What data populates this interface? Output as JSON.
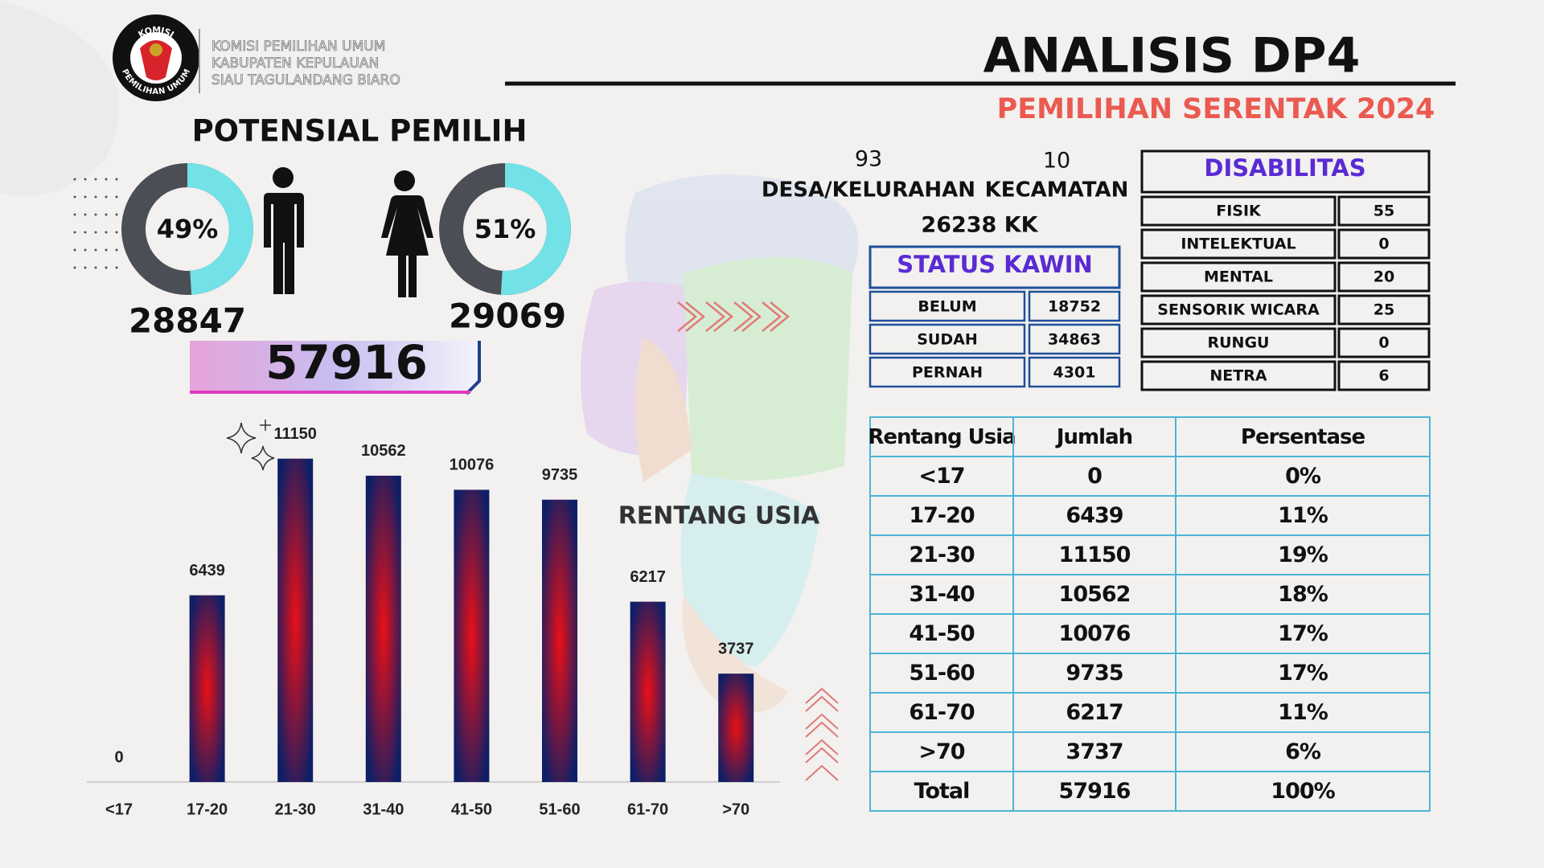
{
  "logo": {
    "top": "KOMISI",
    "bottom": "PEMILIHAN UMUM"
  },
  "header": {
    "org_lines": [
      "KOMISI PEMILIHAN UMUM",
      "KABUPATEN KEPULAUAN",
      "SIAU TAGULANDANG BIARO"
    ],
    "title": "ANALISIS DP4",
    "subtitle": "PEMILIHAN SERENTAK 2024"
  },
  "potensial": {
    "title": "POTENSIAL PEMILIH",
    "male": {
      "percent": 49,
      "percent_label": "49%",
      "count": 28847
    },
    "female": {
      "percent": 51,
      "percent_label": "51%",
      "count": 29069
    },
    "total": 57916,
    "ring_color": "#4b4e54",
    "share_color": "#72e2e8"
  },
  "region": {
    "desa_count": 93,
    "desa_label": "DESA/KELURAHAN",
    "kecamatan_count": 10,
    "kecamatan_label": "KECAMATAN",
    "kk": "26238 KK"
  },
  "status_kawin": {
    "title": "STATUS KAWIN",
    "rows": [
      [
        "BELUM",
        18752
      ],
      [
        "SUDAH",
        34863
      ],
      [
        "PERNAH",
        4301
      ]
    ]
  },
  "disabilitas": {
    "title": "DISABILITAS",
    "rows": [
      [
        "FISIK",
        55
      ],
      [
        "INTELEKTUAL",
        0
      ],
      [
        "MENTAL",
        20
      ],
      [
        "SENSORIK WICARA",
        25
      ],
      [
        "RUNGU",
        0
      ],
      [
        "NETRA",
        6
      ]
    ]
  },
  "age_table": {
    "header": [
      "Rentang Usia",
      "Jumlah",
      "Persentase"
    ],
    "rows": [
      [
        "<17",
        0,
        "0%"
      ],
      [
        "17-20",
        6439,
        "11%"
      ],
      [
        "21-30",
        11150,
        "19%"
      ],
      [
        "31-40",
        10562,
        "18%"
      ],
      [
        "41-50",
        10076,
        "17%"
      ],
      [
        "51-60",
        9735,
        "17%"
      ],
      [
        "61-70",
        6217,
        "11%"
      ],
      [
        ">70",
        3737,
        "6%"
      ],
      [
        "Total",
        57916,
        "100%"
      ]
    ]
  },
  "chart_data": {
    "type": "bar",
    "title": "RENTANG USIA",
    "categories": [
      "<17",
      "17-20",
      "21-30",
      "31-40",
      "41-50",
      "51-60",
      "61-70",
      ">70"
    ],
    "values": [
      0,
      6439,
      11150,
      10562,
      10076,
      9735,
      6217,
      3737
    ],
    "ylim": [
      0,
      12000
    ],
    "color": "#0f1f66",
    "highlight_color": "#ec0f16"
  }
}
